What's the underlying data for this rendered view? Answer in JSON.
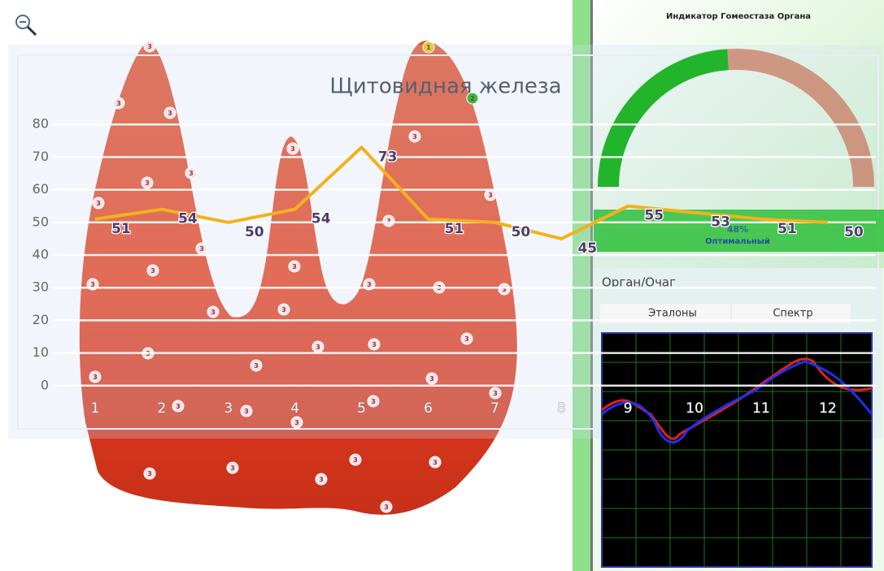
{
  "chart_data": {
    "type": "line",
    "title": "Щитовидная железа",
    "categories": [
      "1",
      "2",
      "3",
      "4",
      "5",
      "6",
      "7",
      "8",
      "9",
      "10",
      "11",
      "12"
    ],
    "values": [
      51,
      54,
      50,
      54,
      73,
      51,
      50,
      45,
      55,
      53,
      51,
      50
    ],
    "color": "#f2b21c",
    "ylim": [
      -10,
      90
    ],
    "yticks": [
      0,
      10,
      20,
      30,
      40,
      50,
      60,
      70,
      80
    ],
    "grid": true
  },
  "gauge": {
    "title": "Индикатор Гомеостаза Органа",
    "value": 48,
    "value_label": "48%",
    "status": "Оптимальный"
  },
  "panel": {
    "title": "Орган/Очаг",
    "tabs": [
      "Эталоны",
      "Спектр"
    ]
  },
  "markers": [
    "3",
    "3",
    "3",
    "3",
    "3",
    "3",
    "3",
    "3",
    "3",
    "3",
    "3",
    "3",
    "3",
    "3",
    "3",
    "3",
    "3",
    "3",
    "3",
    "3",
    "3",
    "3",
    "3",
    "1",
    "2",
    "3",
    "3",
    "3",
    "3",
    "3",
    "3",
    "3",
    "3",
    "3",
    "3",
    "3",
    "3",
    "3",
    "3"
  ]
}
